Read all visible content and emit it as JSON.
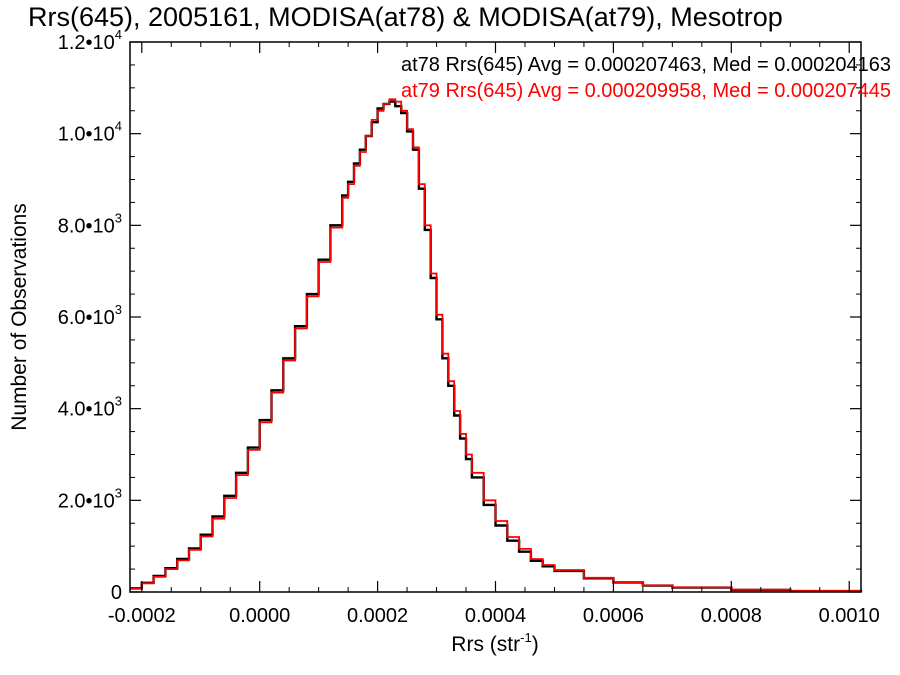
{
  "chart_data": {
    "type": "line",
    "style": "histogram-step",
    "title": "Rrs(645), 2005161, MODISA(at78) & MODISA(at79), Mesotrop",
    "xlabel": "Rrs (str",
    "xlabel_sup": "-1",
    "xlabel_end": ")",
    "ylabel": "Number of Observations",
    "xlim": [
      -0.00022,
      0.00102
    ],
    "ylim": [
      0,
      12000
    ],
    "x_ticks": [
      -0.0002,
      0.0,
      0.0002,
      0.0004,
      0.0006,
      0.0008,
      0.001
    ],
    "x_tick_labels": [
      "-0.0002",
      "0.0000",
      "0.0002",
      "0.0004",
      "0.0006",
      "0.0008",
      "0.0010"
    ],
    "y_ticks": [
      0,
      2000,
      4000,
      6000,
      8000,
      10000,
      12000
    ],
    "y_tick_labels": [
      {
        "mantissa": "0",
        "exp": ""
      },
      {
        "mantissa": "2.0•10",
        "exp": "3"
      },
      {
        "mantissa": "4.0•10",
        "exp": "3"
      },
      {
        "mantissa": "6.0•10",
        "exp": "3"
      },
      {
        "mantissa": "8.0•10",
        "exp": "3"
      },
      {
        "mantissa": "1.0•10",
        "exp": "4"
      },
      {
        "mantissa": "1.2•10",
        "exp": "4"
      }
    ],
    "legend_position": "top-right",
    "series": [
      {
        "name": "at78",
        "color": "#000000",
        "annotation": "at78 Rrs(645) Avg = 0.000207463, Med = 0.000204163",
        "x": [
          -0.00022,
          -0.0002,
          -0.00018,
          -0.00016,
          -0.00014,
          -0.00012,
          -0.0001,
          -8e-05,
          -6e-05,
          -4e-05,
          -2e-05,
          0.0,
          2e-05,
          4e-05,
          6e-05,
          8e-05,
          0.0001,
          0.00012,
          0.00014,
          0.00015,
          0.00016,
          0.00017,
          0.00018,
          0.00019,
          0.0002,
          0.00021,
          0.00022,
          0.00023,
          0.00024,
          0.00025,
          0.00026,
          0.00027,
          0.00028,
          0.00029,
          0.0003,
          0.00031,
          0.00032,
          0.00033,
          0.00034,
          0.00035,
          0.00036,
          0.00038,
          0.0004,
          0.00042,
          0.00044,
          0.00046,
          0.00048,
          0.0005,
          0.00055,
          0.0006,
          0.00065,
          0.0007,
          0.0008,
          0.0009,
          0.00102
        ],
        "y": [
          80,
          200,
          350,
          520,
          720,
          950,
          1250,
          1650,
          2100,
          2600,
          3150,
          3750,
          4400,
          5100,
          5800,
          6500,
          7250,
          8000,
          8650,
          8950,
          9350,
          9650,
          9950,
          10250,
          10550,
          10650,
          10700,
          10600,
          10450,
          10050,
          9650,
          8800,
          7900,
          6850,
          5950,
          5100,
          4500,
          3850,
          3350,
          2900,
          2500,
          1900,
          1450,
          1120,
          880,
          680,
          560,
          460,
          300,
          210,
          140,
          95,
          45,
          20,
          5
        ]
      },
      {
        "name": "at79",
        "color": "#ff0000",
        "annotation": "at79 Rrs(645) Avg = 0.000209958, Med = 0.000207445",
        "x": [
          -0.00022,
          -0.0002,
          -0.00018,
          -0.00016,
          -0.00014,
          -0.00012,
          -0.0001,
          -8e-05,
          -6e-05,
          -4e-05,
          -2e-05,
          0.0,
          2e-05,
          4e-05,
          6e-05,
          8e-05,
          0.0001,
          0.00012,
          0.00014,
          0.00015,
          0.00016,
          0.00017,
          0.00018,
          0.00019,
          0.0002,
          0.00021,
          0.00022,
          0.00023,
          0.00024,
          0.00025,
          0.00026,
          0.00027,
          0.00028,
          0.00029,
          0.0003,
          0.00031,
          0.00032,
          0.00033,
          0.00034,
          0.00035,
          0.00036,
          0.00038,
          0.0004,
          0.00042,
          0.00044,
          0.00046,
          0.00048,
          0.0005,
          0.00055,
          0.0006,
          0.00065,
          0.0007,
          0.0008,
          0.0009,
          0.00102
        ],
        "y": [
          70,
          190,
          330,
          500,
          690,
          920,
          1210,
          1600,
          2050,
          2550,
          3100,
          3700,
          4350,
          5050,
          5750,
          6450,
          7200,
          7950,
          8600,
          8900,
          9300,
          9600,
          9950,
          10300,
          10500,
          10650,
          10750,
          10700,
          10500,
          10100,
          9700,
          8900,
          8000,
          6950,
          6050,
          5200,
          4600,
          3950,
          3450,
          3000,
          2600,
          2000,
          1550,
          1200,
          940,
          720,
          590,
          480,
          310,
          215,
          145,
          100,
          50,
          22,
          6
        ]
      }
    ]
  }
}
